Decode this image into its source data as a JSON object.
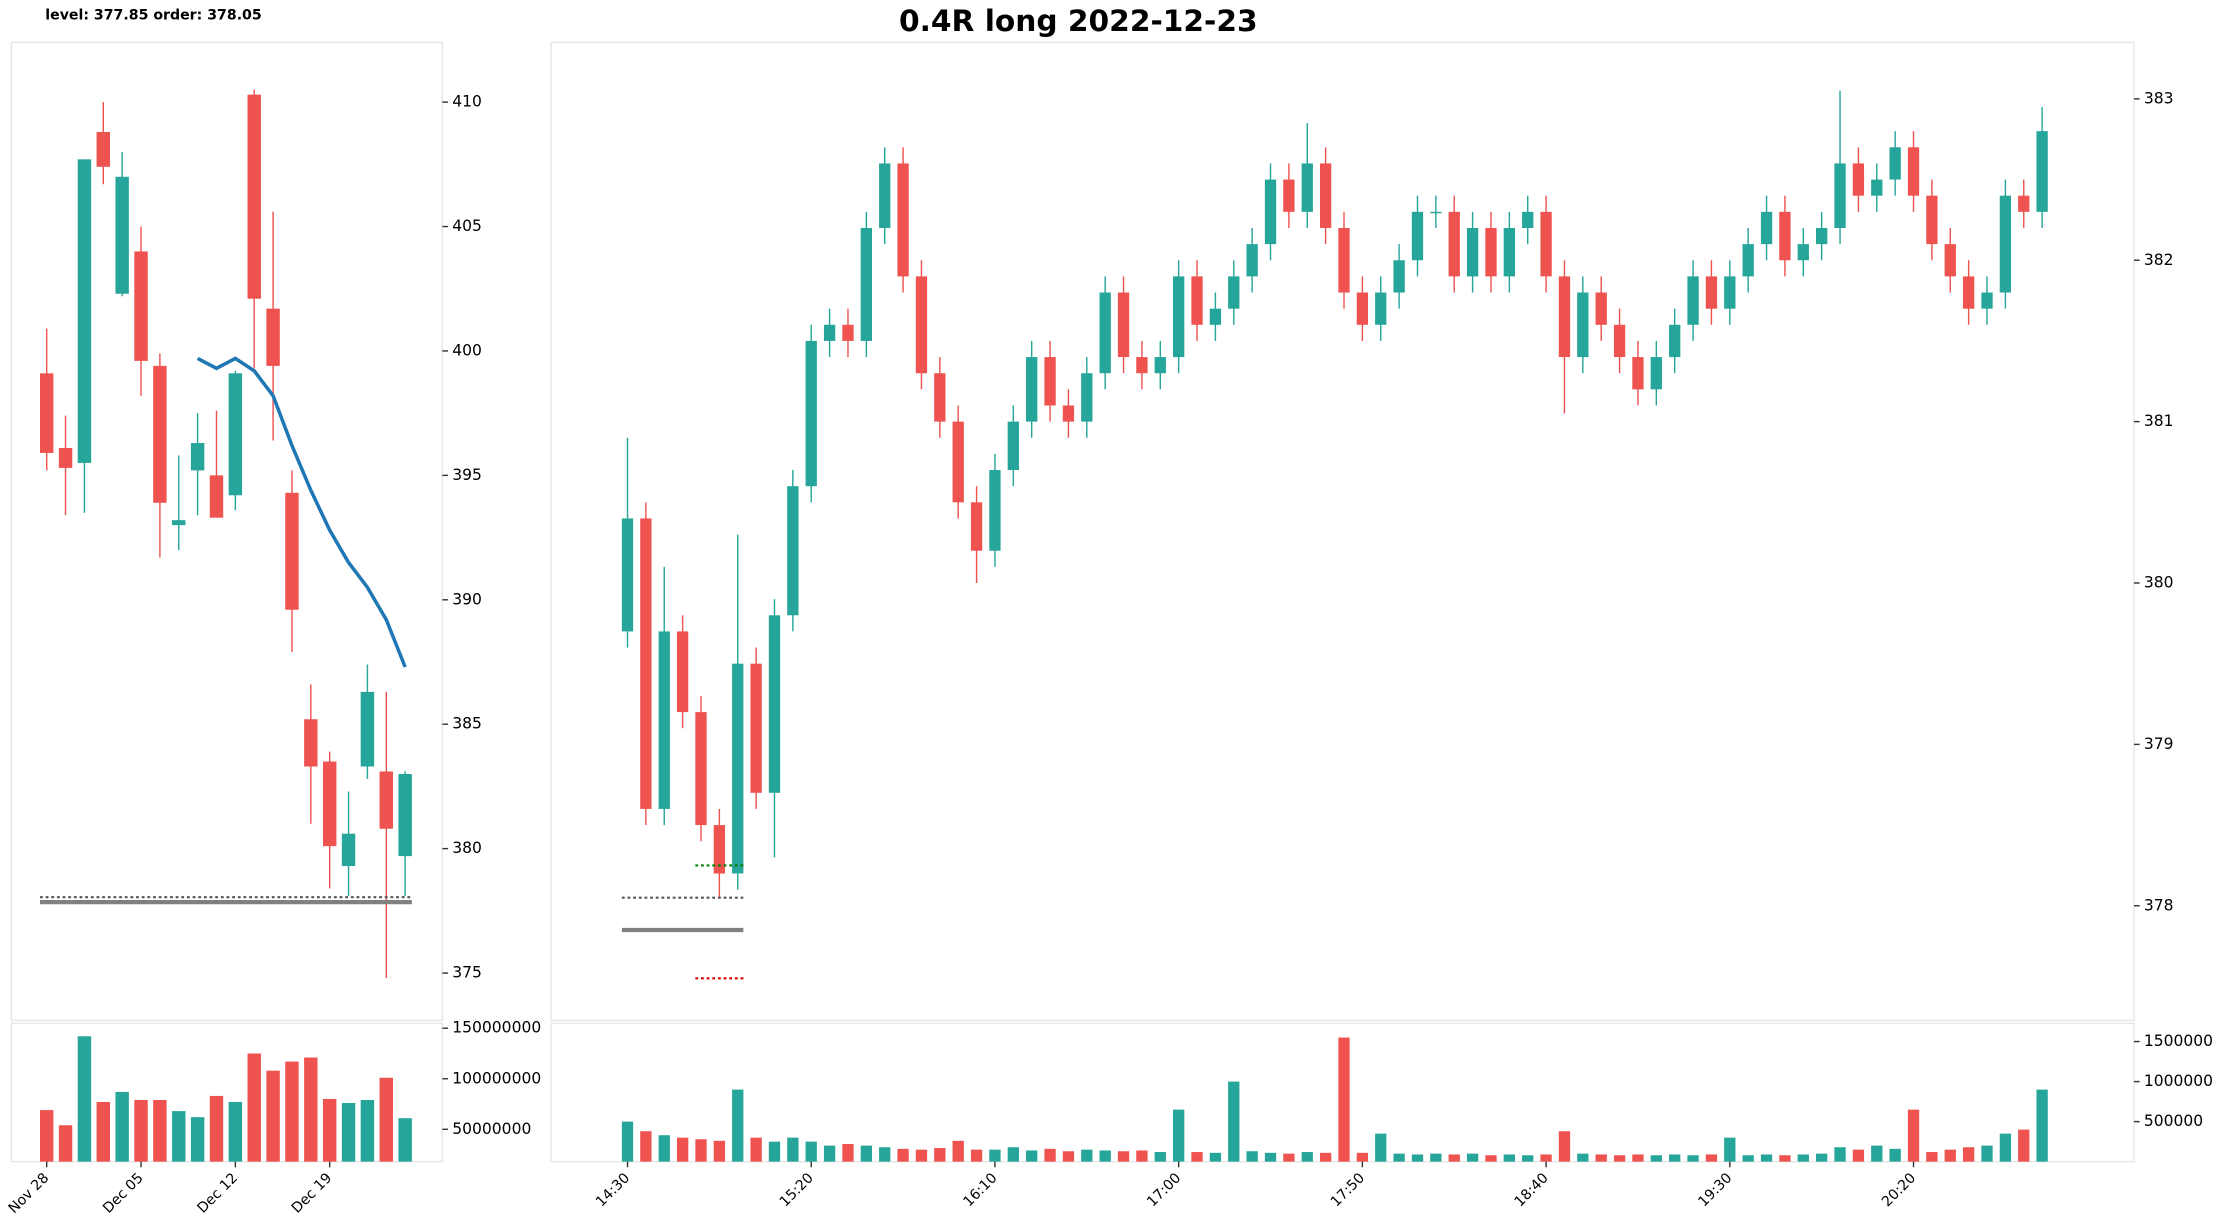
{
  "header": "level: 377.85  order: 378.05",
  "chart_data": [
    {
      "type": "candlestick",
      "categories": [
        "Nov 28",
        null,
        null,
        null,
        null,
        "Dec 05",
        null,
        null,
        null,
        null,
        "Dec 12",
        null,
        null,
        null,
        null,
        "Dec 19",
        null,
        null,
        null,
        null
      ],
      "open": [
        399.1,
        396.1,
        395.5,
        408.8,
        402.3,
        404.0,
        399.4,
        393.0,
        395.2,
        395.0,
        394.2,
        410.3,
        401.7,
        394.3,
        385.2,
        383.5,
        379.3,
        383.3,
        383.1,
        379.7
      ],
      "high": [
        400.9,
        397.4,
        407.7,
        410.0,
        408.0,
        405.0,
        399.9,
        395.8,
        397.5,
        397.6,
        399.2,
        410.5,
        405.6,
        395.2,
        386.6,
        383.9,
        382.3,
        387.4,
        386.3,
        383.1
      ],
      "low": [
        395.2,
        393.4,
        393.5,
        406.7,
        402.2,
        398.2,
        391.7,
        392.0,
        393.4,
        393.3,
        393.6,
        399.3,
        396.4,
        387.9,
        381.0,
        378.4,
        378.1,
        382.8,
        374.8,
        378.1
      ],
      "close": [
        395.9,
        395.3,
        407.7,
        407.4,
        407.0,
        399.6,
        393.9,
        393.2,
        396.3,
        393.3,
        399.1,
        402.1,
        399.4,
        389.6,
        383.3,
        380.1,
        380.6,
        386.3,
        380.8,
        383.0
      ],
      "volume": [
        69000000,
        54000000,
        142000000,
        77000000,
        87000000,
        79000000,
        79000000,
        68000000,
        62000000,
        83000000,
        77000000,
        125000000,
        108000000,
        117000000,
        121000000,
        80000000,
        76000000,
        79000000,
        101000000,
        61000000
      ],
      "ma": {
        "color": "#1f77b4",
        "values": [
          null,
          null,
          null,
          null,
          null,
          null,
          null,
          null,
          399.7,
          399.3,
          399.7,
          399.2,
          398.2,
          396.2,
          394.4,
          392.8,
          391.5,
          390.5,
          389.2,
          387.3
        ]
      },
      "lines": [
        {
          "value": 378.05,
          "color": "#555555",
          "style": "dotted"
        },
        {
          "value": 377.85,
          "color": "#808080",
          "style": "solid"
        }
      ],
      "up_color": "#26a69a",
      "down_color": "#ef5350",
      "ylim": [
        373.1,
        412.4
      ],
      "yticks": [
        375,
        380,
        385,
        390,
        395,
        400,
        405,
        410
      ],
      "volume_ylim": [
        18000000,
        155000000
      ],
      "volume_yticks": [
        50000000,
        100000000,
        150000000
      ]
    },
    {
      "type": "candlestick",
      "title": "0.4R long 2022-12-23",
      "categories": [
        "14:30",
        null,
        null,
        null,
        null,
        null,
        null,
        null,
        null,
        null,
        "15:20",
        null,
        null,
        null,
        null,
        null,
        null,
        null,
        null,
        null,
        "16:10",
        null,
        null,
        null,
        null,
        null,
        null,
        null,
        null,
        null,
        "17:00",
        null,
        null,
        null,
        null,
        null,
        null,
        null,
        null,
        null,
        "17:50",
        null,
        null,
        null,
        null,
        null,
        null,
        null,
        null,
        null,
        "18:40",
        null,
        null,
        null,
        null,
        null,
        null,
        null,
        null,
        null,
        "19:30",
        null,
        null,
        null,
        null,
        null,
        null,
        null,
        null,
        null,
        "20:20",
        null,
        null,
        null,
        null,
        null,
        null,
        null
      ],
      "open": [
        379.7,
        380.4,
        378.6,
        379.7,
        379.2,
        378.5,
        378.2,
        379.5,
        378.7,
        379.8,
        380.6,
        381.5,
        381.6,
        381.5,
        382.2,
        382.6,
        381.9,
        381.3,
        381.0,
        380.5,
        380.2,
        380.7,
        381.0,
        381.4,
        381.1,
        381.0,
        381.3,
        381.8,
        381.4,
        381.3,
        381.4,
        381.9,
        381.6,
        381.7,
        381.9,
        382.1,
        382.5,
        382.3,
        382.6,
        382.2,
        381.8,
        381.6,
        381.8,
        382.0,
        382.3,
        382.3,
        381.9,
        382.2,
        381.9,
        382.2,
        382.3,
        381.9,
        381.4,
        381.8,
        381.6,
        381.4,
        381.2,
        381.4,
        381.6,
        381.9,
        381.7,
        381.9,
        382.1,
        382.3,
        382.0,
        382.1,
        382.2,
        382.6,
        382.4,
        382.5,
        382.7,
        382.4,
        382.1,
        381.9,
        381.7,
        381.8,
        382.4,
        382.3
      ],
      "high": [
        380.9,
        380.5,
        380.1,
        379.8,
        379.3,
        378.6,
        380.3,
        379.6,
        379.9,
        380.7,
        381.6,
        381.7,
        381.7,
        382.3,
        382.7,
        382.7,
        382.0,
        381.4,
        381.1,
        380.6,
        380.8,
        381.1,
        381.5,
        381.5,
        381.2,
        381.4,
        381.9,
        381.9,
        381.5,
        381.5,
        382.0,
        382.0,
        381.8,
        382.0,
        382.2,
        382.6,
        382.6,
        382.85,
        382.7,
        382.3,
        381.9,
        381.9,
        382.1,
        382.4,
        382.4,
        382.4,
        382.3,
        382.3,
        382.3,
        382.4,
        382.4,
        382.0,
        381.9,
        381.9,
        381.7,
        381.5,
        381.5,
        381.7,
        382.0,
        382.0,
        382.0,
        382.2,
        382.4,
        382.4,
        382.2,
        382.3,
        383.05,
        382.7,
        382.6,
        382.8,
        382.8,
        382.5,
        382.2,
        382.0,
        381.9,
        382.5,
        382.5,
        382.95
      ],
      "low": [
        379.6,
        378.5,
        378.5,
        379.1,
        378.4,
        378.05,
        378.1,
        378.6,
        378.3,
        379.7,
        380.5,
        381.4,
        381.4,
        381.4,
        382.1,
        381.8,
        381.2,
        380.9,
        380.4,
        380.0,
        380.1,
        380.6,
        380.9,
        381.0,
        380.9,
        380.9,
        381.2,
        381.3,
        381.2,
        381.2,
        381.3,
        381.5,
        381.5,
        381.6,
        381.8,
        382.0,
        382.2,
        382.2,
        382.1,
        381.7,
        381.5,
        381.5,
        381.7,
        381.9,
        382.2,
        381.8,
        381.8,
        381.8,
        381.8,
        382.1,
        381.8,
        381.05,
        381.3,
        381.5,
        381.3,
        381.1,
        381.1,
        381.3,
        381.5,
        381.6,
        381.6,
        381.8,
        382.0,
        381.9,
        381.9,
        382.0,
        382.1,
        382.3,
        382.3,
        382.4,
        382.3,
        382.0,
        381.8,
        381.6,
        381.6,
        381.7,
        382.2,
        382.2
      ],
      "close": [
        380.4,
        378.6,
        379.7,
        379.2,
        378.5,
        378.2,
        379.5,
        378.7,
        379.8,
        380.6,
        381.5,
        381.6,
        381.5,
        382.2,
        382.6,
        381.9,
        381.3,
        381.0,
        380.5,
        380.2,
        380.7,
        381.0,
        381.4,
        381.1,
        381.0,
        381.3,
        381.8,
        381.4,
        381.3,
        381.4,
        381.9,
        381.6,
        381.7,
        381.9,
        382.1,
        382.5,
        382.3,
        382.6,
        382.2,
        381.8,
        381.6,
        381.8,
        382.0,
        382.3,
        382.3,
        381.9,
        382.2,
        381.9,
        382.2,
        382.3,
        381.9,
        381.4,
        381.8,
        381.6,
        381.4,
        381.2,
        381.4,
        381.6,
        381.9,
        381.7,
        381.9,
        382.1,
        382.3,
        382.0,
        382.1,
        382.2,
        382.6,
        382.4,
        382.5,
        382.7,
        382.4,
        382.1,
        381.9,
        381.7,
        381.8,
        382.4,
        382.3,
        382.8
      ],
      "volume": [
        500000,
        380000,
        330000,
        300000,
        280000,
        260000,
        900000,
        300000,
        250000,
        300000,
        250000,
        200000,
        220000,
        200000,
        180000,
        160000,
        150000,
        170000,
        260000,
        150000,
        150000,
        180000,
        140000,
        160000,
        130000,
        150000,
        140000,
        130000,
        140000,
        120000,
        650000,
        120000,
        110000,
        1000000,
        130000,
        110000,
        100000,
        120000,
        110000,
        1550000,
        110000,
        350000,
        100000,
        90000,
        100000,
        90000,
        100000,
        80000,
        90000,
        80000,
        90000,
        380000,
        100000,
        90000,
        80000,
        90000,
        80000,
        90000,
        80000,
        90000,
        300000,
        80000,
        90000,
        80000,
        90000,
        100000,
        180000,
        150000,
        200000,
        160000,
        650000,
        120000,
        150000,
        180000,
        200000,
        350000,
        400000,
        900000
      ],
      "lines": [
        {
          "value": 378.05,
          "color": "#555555",
          "style": "dotted"
        },
        {
          "value": 377.85,
          "color": "#808080",
          "style": "solid"
        },
        {
          "value": 378.25,
          "color": "#008000",
          "style": "dotted"
        },
        {
          "value": 377.55,
          "color": "#dd0000",
          "style": "dotted"
        }
      ],
      "up_color": "#26a69a",
      "down_color": "#ef5350",
      "ylim": [
        377.29,
        383.35
      ],
      "yticks": [
        378,
        379,
        380,
        381,
        382,
        383
      ],
      "volume_ylim": [
        0,
        1730000
      ],
      "volume_yticks": [
        500000,
        1000000,
        1500000
      ]
    }
  ]
}
